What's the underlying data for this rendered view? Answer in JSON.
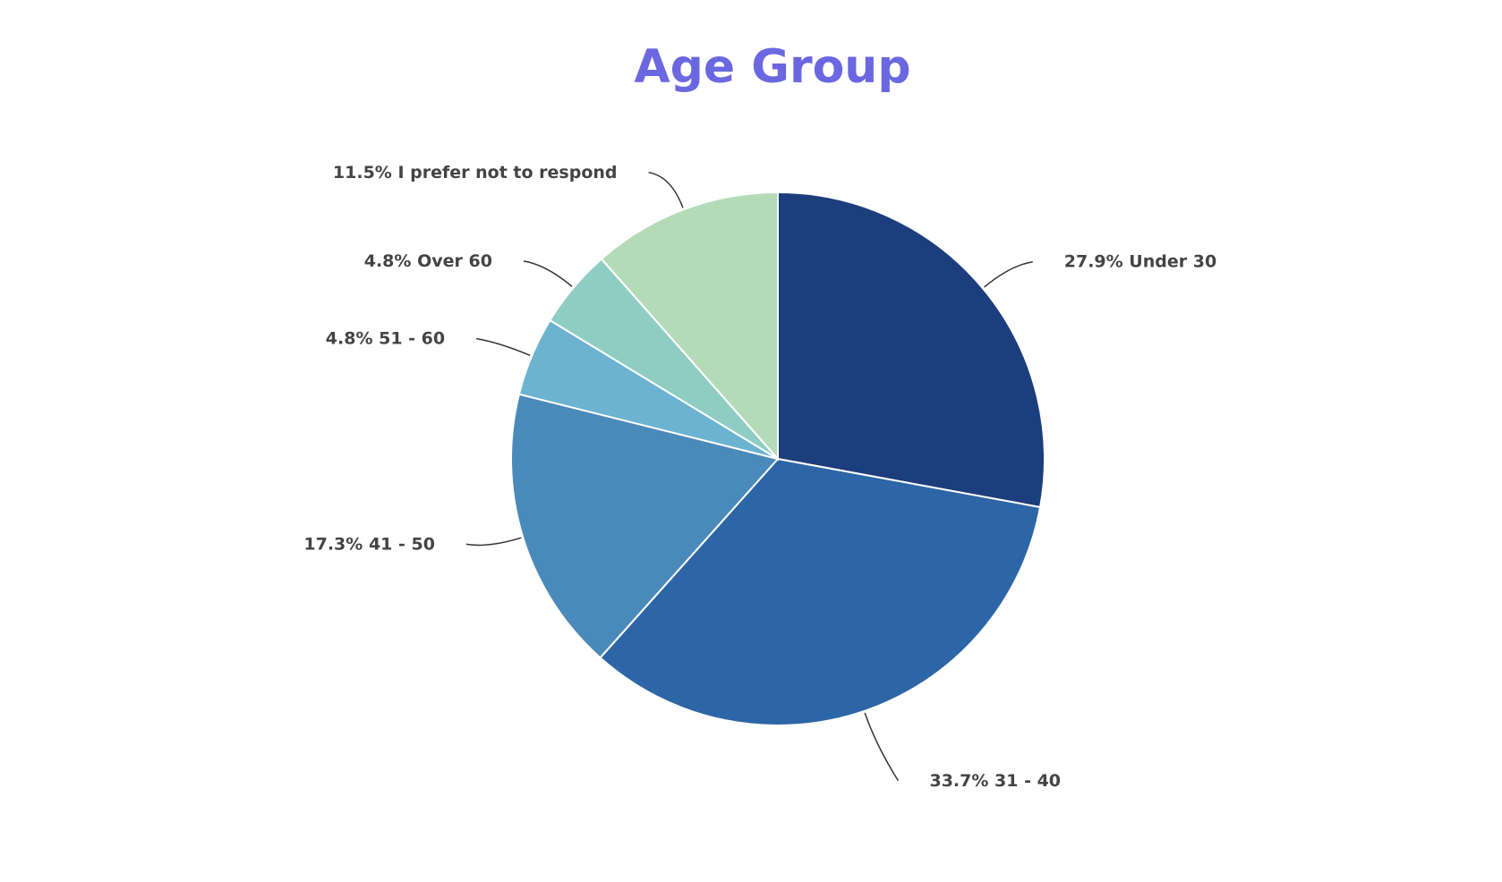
{
  "chart_data": {
    "type": "pie",
    "title": "Age Group",
    "categories": [
      "Under 30",
      "31 - 40",
      "41 - 50",
      "51 - 60",
      "Over 60",
      "I prefer not to respond"
    ],
    "values": [
      27.9,
      33.7,
      17.3,
      4.8,
      4.8,
      11.5
    ],
    "value_labels": [
      "27.9%",
      "33.7%",
      "17.3%",
      "4.8%",
      "4.8%",
      "11.5%"
    ],
    "colors": [
      "#1d3e7c",
      "#2d66a6",
      "#4a8aba",
      "#6cb2d1",
      "#8fcdc4",
      "#b3dbb7"
    ]
  }
}
